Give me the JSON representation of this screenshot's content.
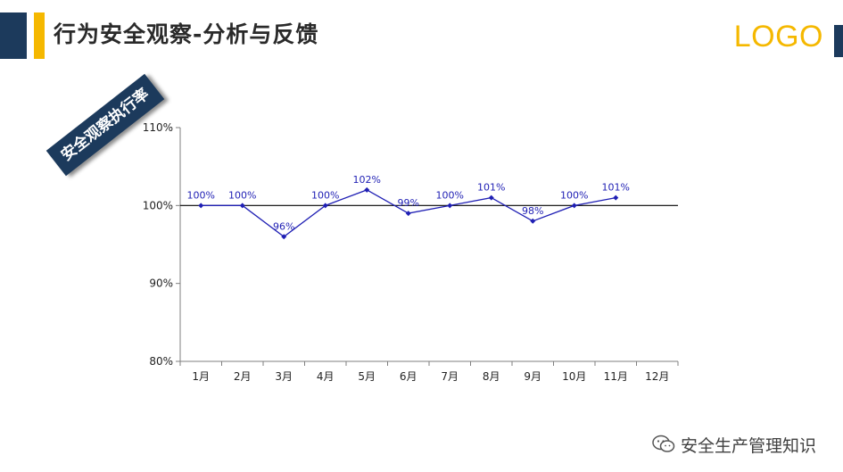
{
  "header": {
    "title": "行为安全观察-分析与反馈",
    "logo": "LOGO"
  },
  "badge_label": "安全观察执行率",
  "footer": {
    "text": "安全生产管理知识",
    "icon": "wechat-icon"
  },
  "colors": {
    "navy": "#1c3a5c",
    "gold": "#f5b800",
    "series": "#1f1fb4"
  },
  "chart_data": {
    "type": "line",
    "categories": [
      "1月",
      "2月",
      "3月",
      "4月",
      "5月",
      "6月",
      "7月",
      "8月",
      "9月",
      "10月",
      "11月",
      "12月"
    ],
    "series": [
      {
        "values": [
          100,
          100,
          96,
          100,
          102,
          99,
          100,
          101,
          98,
          100,
          101,
          null
        ],
        "labels": [
          "100%",
          "100%",
          "96%",
          "100%",
          "102%",
          "99%",
          "100%",
          "101%",
          "98%",
          "100%",
          "101%",
          ""
        ]
      }
    ],
    "yticks": [
      80,
      90,
      100,
      110
    ],
    "ytick_labels": [
      "80%",
      "90%",
      "100%",
      "110%"
    ],
    "ylim": [
      80,
      110
    ],
    "reference_line": 100,
    "grid": false,
    "legend": "none"
  }
}
